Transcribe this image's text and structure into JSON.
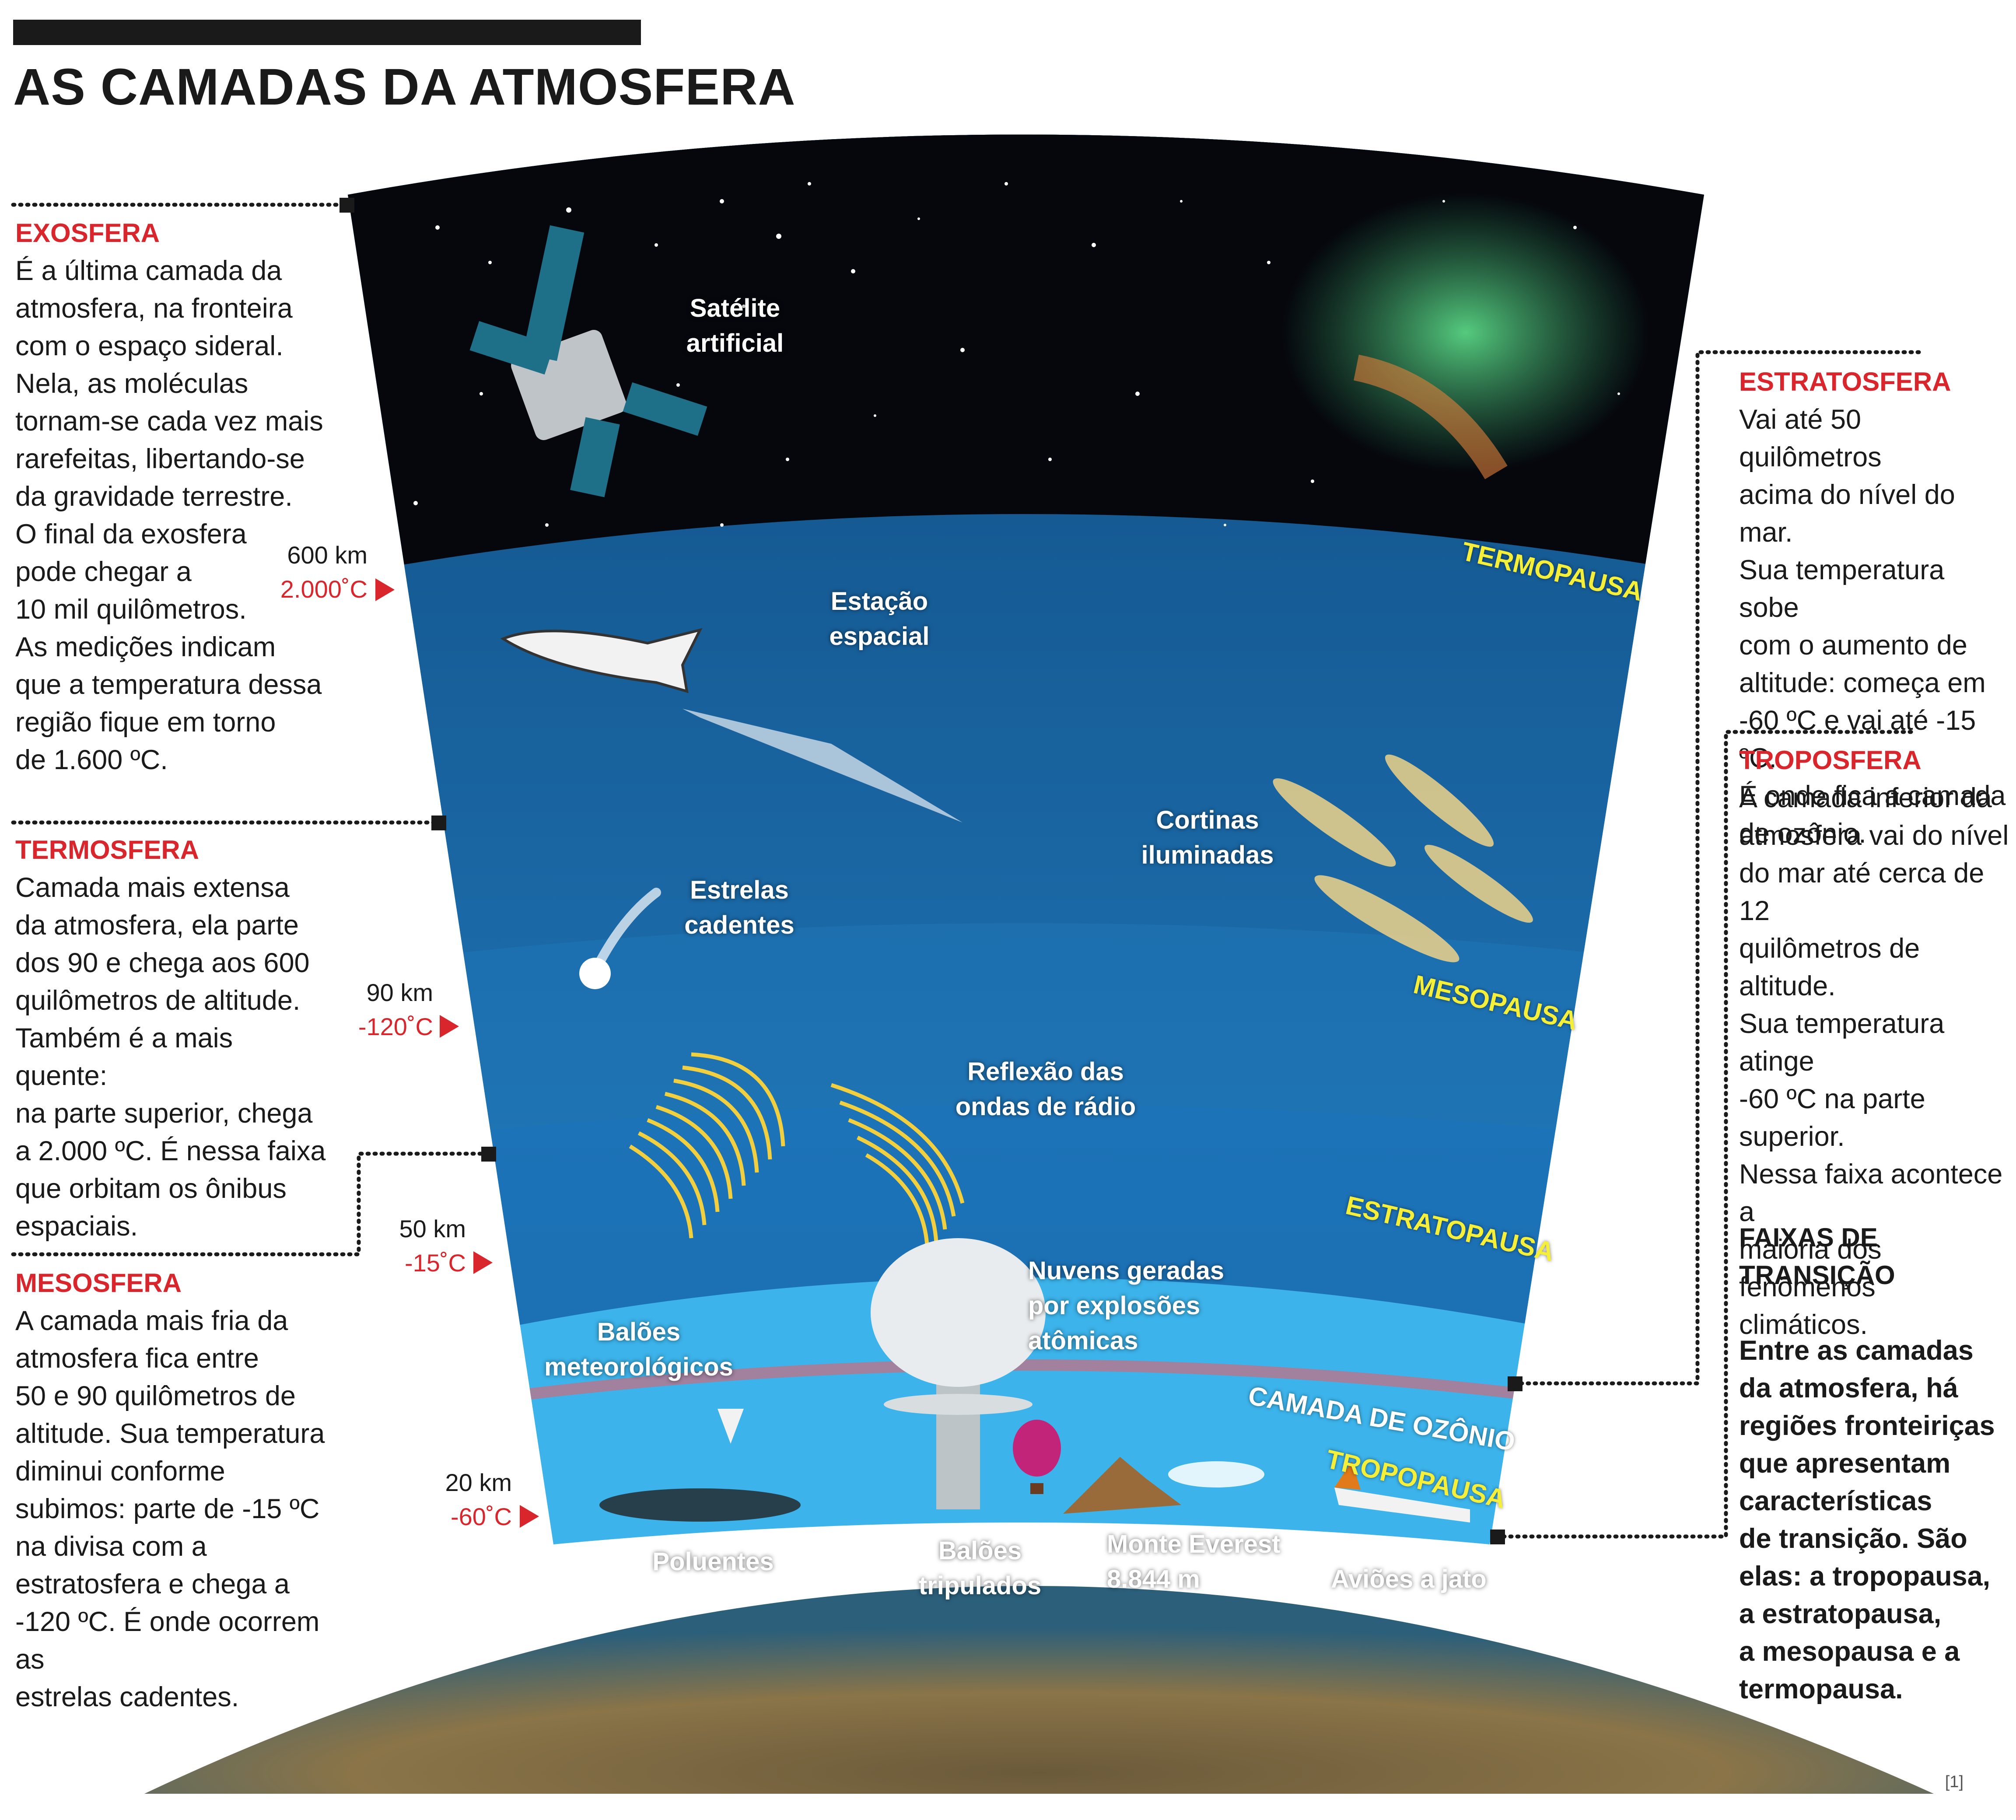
{
  "title": "AS CAMADAS DA ATMOSFERA",
  "panels": {
    "exosfera": {
      "heading": "EXOSFERA",
      "text": "É a última camada da\natmosfera, na fronteira\ncom o espaço sideral.\nNela, as moléculas\ntornam-se cada vez mais\nrarefeitas, libertando-se\nda gravidade terrestre.\nO final da exosfera\npode chegar a\n10 mil quilômetros.\nAs medições indicam\nque a temperatura dessa\nregião fique em torno\nde 1.600 ºC."
    },
    "termosfera": {
      "heading": "TERMOSFERA",
      "text": "Camada mais extensa\nda atmosfera, ela parte\ndos 90 e chega aos 600\nquilômetros de altitude.\nTambém é a mais quente:\nna parte superior, chega\na 2.000 ºC. É nessa faixa\nque orbitam os ônibus\nespaciais."
    },
    "mesosfera": {
      "heading": "MESOSFERA",
      "text": "A camada mais fria da\natmosfera fica entre\n50 e 90 quilômetros de\naltitude. Sua temperatura\ndiminui conforme\nsubimos: parte de -15 ºC\nna divisa com a\nestratosfera e chega a\n-120 ºC. É onde ocorrem as\nestrelas cadentes."
    },
    "estratosfera": {
      "heading": "ESTRATOSFERA",
      "text": "Vai até 50 quilômetros\nacima do nível do mar.\nSua temperatura sobe\ncom o aumento de\naltitude: começa em\n-60 ºC e vai até -15 ºC.\nÉ onde fica a camada\nde ozônio."
    },
    "troposfera": {
      "heading": "TROPOSFERA",
      "text": "A camada inferior da\natmosfera vai do nível\ndo mar até cerca de 12\nquilômetros de altitude.\nSua temperatura atinge\n-60 ºC na parte superior.\nNessa faixa acontece a\nmaioria dos fenômenos\nclimáticos."
    },
    "faixas": {
      "heading": "FAIXAS DE\nTRANSIÇÃO",
      "text": "Entre as camadas\nda atmosfera, há\nregiões fronteiriças\nque apresentam\ncaracterísticas\nde transição. São\nelas: a tropopausa,\na estratopausa,\na mesopausa e a\ntermopausa."
    }
  },
  "altitudes": [
    {
      "km": "600 km",
      "temp": "2.000˚C"
    },
    {
      "km": "90 km",
      "temp": "-120˚C"
    },
    {
      "km": "50 km",
      "temp": "-15˚C"
    },
    {
      "km": "20 km",
      "temp": "-60˚C"
    }
  ],
  "diagram_labels": {
    "satelite": "Satélite\nartificial",
    "estacao": "Estação\nespacial",
    "cortinas": "Cortinas\niluminadas",
    "estrelas": "Estrelas\ncadentes",
    "reflexao": "Reflexão das\nondas de rádio",
    "nuvens": "Nuvens geradas\npor explosões\natômicas",
    "baloes_met": "Balões\nmeteorológicos",
    "poluentes": "Poluentes",
    "baloes_trip": "Balões\ntripulados",
    "everest": "Monte Everest\n8.844 m",
    "avioes": "Aviões a jato"
  },
  "pauses": {
    "termopausa": "TERMOPAUSA",
    "mesopausa": "MESOPAUSA",
    "estratopausa": "ESTRATOPAUSA",
    "ozonio": "CAMADA DE OZÔNIO",
    "tropopausa": "TROPOPAUSA"
  },
  "reference": "[1]",
  "colors": {
    "accent_red": "#d8262c",
    "pause_yellow": "#f5ef3a",
    "space": "#05070d",
    "thermosphere": "#0f4f86",
    "stratosphere": "#2a86c8",
    "troposphere": "#3cb3ea"
  }
}
